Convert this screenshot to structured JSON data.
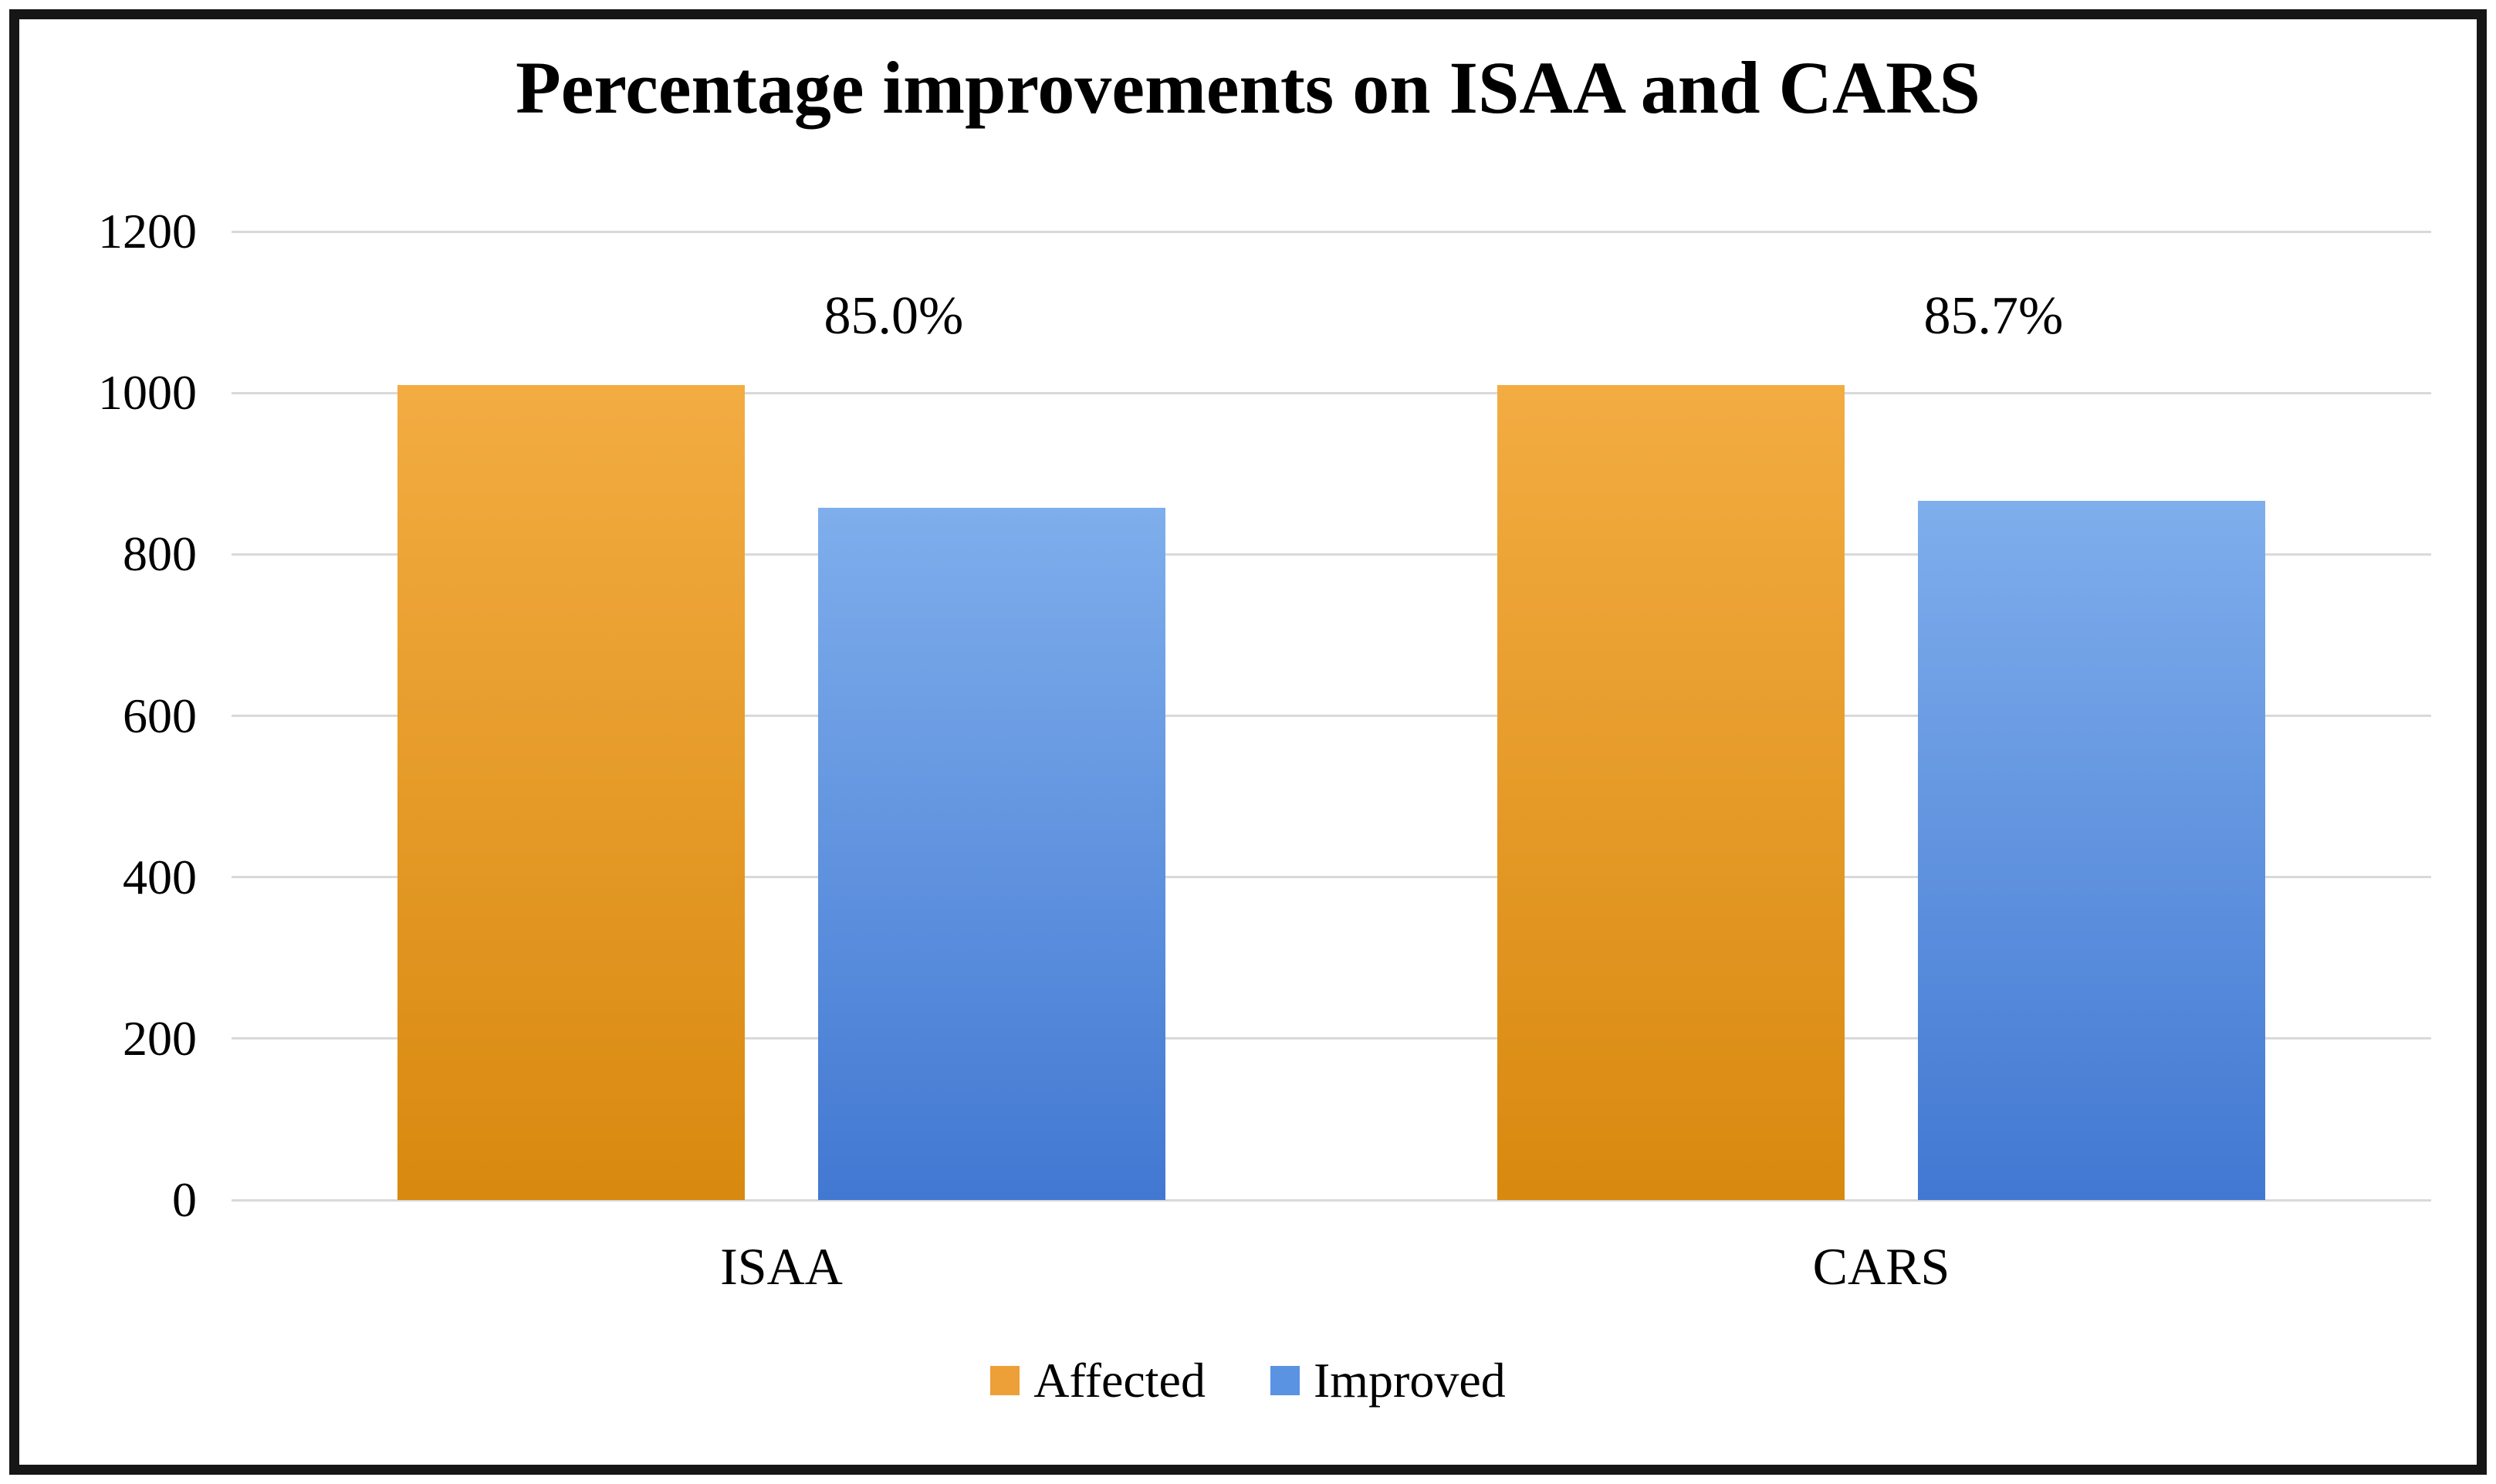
{
  "chart_data": {
    "type": "bar",
    "title": "Percentage improvements on ISAA and CARS",
    "xlabel": "",
    "ylabel": "",
    "categories": [
      "ISAA",
      "CARS"
    ],
    "series": [
      {
        "name": "Affected",
        "values": [
          1010,
          1010
        ],
        "color": "#ED9F38",
        "gradient_top": "#F3AC42",
        "gradient_bottom": "#D8890F"
      },
      {
        "name": "Improved",
        "values": [
          858,
          866
        ],
        "color": "#5B93E3",
        "gradient_top": "#7FAEEC",
        "gradient_bottom": "#4278D2"
      }
    ],
    "annotations": [
      {
        "category": "ISAA",
        "label": "85.0%"
      },
      {
        "category": "CARS",
        "label": "85.7%"
      }
    ],
    "ylim": [
      0,
      1200
    ],
    "yticks": [
      0,
      200,
      400,
      600,
      800,
      1000,
      1200
    ],
    "grid": true,
    "gridline_color": "#d9d9d9",
    "legend_position": "bottom"
  }
}
